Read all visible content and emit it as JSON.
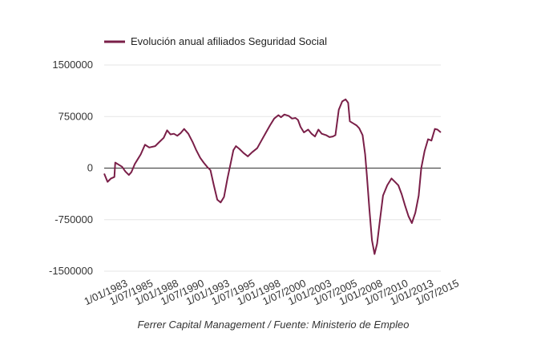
{
  "chart_data": {
    "type": "line",
    "legend": {
      "position": "top-left"
    },
    "grid": true,
    "ylim": [
      -1500000,
      1500000
    ],
    "yticks": [
      "1500000",
      "750000",
      "0",
      "-750000",
      "-1500000"
    ],
    "ytick_values": [
      1500000,
      750000,
      0,
      -750000,
      -1500000
    ],
    "xlim": [
      "1983-01",
      "2016-01"
    ],
    "xticks": [
      "1/01/1983",
      "1/07/1985",
      "1/01/1988",
      "1/07/1990",
      "1/01/1993",
      "1/07/1995",
      "1/01/1998",
      "1/07/2000",
      "1/01/2003",
      "1/07/2005",
      "1/01/2008",
      "1/07/2010",
      "1/01/2013",
      "1/07/2015"
    ],
    "xtick_dates": [
      "1983-01",
      "1985-07",
      "1988-01",
      "1990-07",
      "1993-01",
      "1995-07",
      "1998-01",
      "2000-07",
      "2003-01",
      "2005-07",
      "2008-01",
      "2010-07",
      "2013-01",
      "2015-07"
    ],
    "series": [
      {
        "name": "Evolución anual afiliados Seguridad Social",
        "color": "#7a1f48",
        "points": [
          [
            "1983-01",
            -80000
          ],
          [
            "1983-05",
            -200000
          ],
          [
            "1983-09",
            -150000
          ],
          [
            "1984-01",
            -130000
          ],
          [
            "1984-02",
            80000
          ],
          [
            "1984-06",
            50000
          ],
          [
            "1984-10",
            20000
          ],
          [
            "1985-02",
            -50000
          ],
          [
            "1985-06",
            -100000
          ],
          [
            "1985-09",
            -60000
          ],
          [
            "1986-01",
            60000
          ],
          [
            "1986-04",
            120000
          ],
          [
            "1986-08",
            200000
          ],
          [
            "1987-01",
            340000
          ],
          [
            "1987-06",
            300000
          ],
          [
            "1988-01",
            320000
          ],
          [
            "1988-06",
            380000
          ],
          [
            "1988-11",
            440000
          ],
          [
            "1989-03",
            550000
          ],
          [
            "1989-07",
            490000
          ],
          [
            "1989-11",
            500000
          ],
          [
            "1990-03",
            470000
          ],
          [
            "1990-07",
            510000
          ],
          [
            "1990-11",
            570000
          ],
          [
            "1991-04",
            500000
          ],
          [
            "1991-09",
            380000
          ],
          [
            "1992-01",
            270000
          ],
          [
            "1992-06",
            150000
          ],
          [
            "1992-10",
            80000
          ],
          [
            "1993-02",
            20000
          ],
          [
            "1993-06",
            -30000
          ],
          [
            "1993-10",
            -250000
          ],
          [
            "1994-02",
            -460000
          ],
          [
            "1994-06",
            -500000
          ],
          [
            "1994-10",
            -420000
          ],
          [
            "1995-02",
            -150000
          ],
          [
            "1995-06",
            80000
          ],
          [
            "1995-09",
            260000
          ],
          [
            "1995-12",
            320000
          ],
          [
            "1996-04",
            280000
          ],
          [
            "1996-09",
            220000
          ],
          [
            "1997-02",
            170000
          ],
          [
            "1997-07",
            230000
          ],
          [
            "1998-01",
            290000
          ],
          [
            "1998-06",
            400000
          ],
          [
            "1998-11",
            510000
          ],
          [
            "1999-04",
            620000
          ],
          [
            "1999-09",
            720000
          ],
          [
            "2000-02",
            770000
          ],
          [
            "2000-05",
            740000
          ],
          [
            "2000-09",
            780000
          ],
          [
            "2001-02",
            760000
          ],
          [
            "2001-06",
            720000
          ],
          [
            "2001-10",
            730000
          ],
          [
            "2002-01",
            700000
          ],
          [
            "2002-04",
            600000
          ],
          [
            "2002-08",
            520000
          ],
          [
            "2003-01",
            560000
          ],
          [
            "2003-05",
            500000
          ],
          [
            "2003-09",
            460000
          ],
          [
            "2004-01",
            560000
          ],
          [
            "2004-05",
            500000
          ],
          [
            "2004-10",
            480000
          ],
          [
            "2005-02",
            450000
          ],
          [
            "2005-06",
            460000
          ],
          [
            "2005-09",
            480000
          ],
          [
            "2006-01",
            850000
          ],
          [
            "2006-05",
            970000
          ],
          [
            "2006-09",
            1000000
          ],
          [
            "2006-12",
            950000
          ],
          [
            "2007-02",
            680000
          ],
          [
            "2007-06",
            650000
          ],
          [
            "2007-10",
            620000
          ],
          [
            "2008-01",
            580000
          ],
          [
            "2008-05",
            480000
          ],
          [
            "2008-08",
            200000
          ],
          [
            "2008-10",
            -100000
          ],
          [
            "2009-01",
            -600000
          ],
          [
            "2009-04",
            -1050000
          ],
          [
            "2009-07",
            -1250000
          ],
          [
            "2009-10",
            -1100000
          ],
          [
            "2010-01",
            -800000
          ],
          [
            "2010-05",
            -400000
          ],
          [
            "2010-10",
            -250000
          ],
          [
            "2011-03",
            -150000
          ],
          [
            "2011-07",
            -200000
          ],
          [
            "2011-11",
            -250000
          ],
          [
            "2012-03",
            -380000
          ],
          [
            "2012-07",
            -550000
          ],
          [
            "2012-11",
            -700000
          ],
          [
            "2013-03",
            -800000
          ],
          [
            "2013-07",
            -650000
          ],
          [
            "2013-11",
            -400000
          ],
          [
            "2014-02",
            0
          ],
          [
            "2014-06",
            250000
          ],
          [
            "2014-10",
            420000
          ],
          [
            "2015-02",
            400000
          ],
          [
            "2015-06",
            570000
          ],
          [
            "2015-09",
            560000
          ],
          [
            "2016-01",
            520000
          ]
        ]
      }
    ]
  },
  "caption": "Ferrer Capital Management / Fuente: Ministerio de Empleo"
}
